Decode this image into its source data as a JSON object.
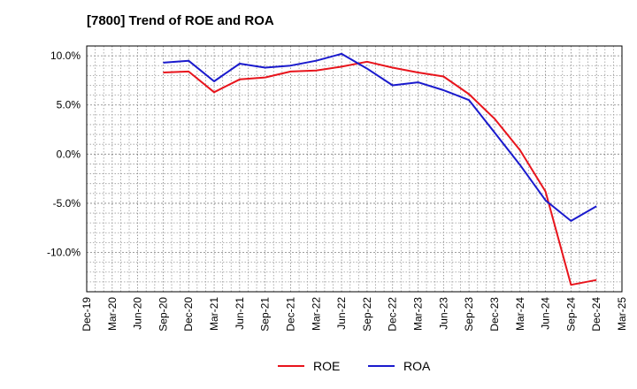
{
  "chart_data": {
    "type": "line",
    "title": "[7800]  Trend of ROE and ROA",
    "xlabel": "",
    "ylabel": "",
    "x_categories": [
      "Dec-19",
      "Mar-20",
      "Jun-20",
      "Sep-20",
      "Dec-20",
      "Mar-21",
      "Jun-21",
      "Sep-21",
      "Dec-21",
      "Mar-22",
      "Jun-22",
      "Sep-22",
      "Dec-22",
      "Mar-23",
      "Jun-23",
      "Sep-23",
      "Dec-23",
      "Mar-24",
      "Jun-24",
      "Sep-24",
      "Dec-24",
      "Mar-25"
    ],
    "y_ticks": [
      -10,
      -5,
      0,
      5,
      10
    ],
    "y_tick_labels": [
      "-10.0%",
      "-5.0%",
      "0.0%",
      "5.0%",
      "10.0%"
    ],
    "ylim": [
      -14,
      11
    ],
    "grid": true,
    "legend_position": "bottom",
    "series": [
      {
        "name": "ROE",
        "color": "#e8141c",
        "values": [
          null,
          null,
          null,
          8.3,
          8.4,
          6.3,
          7.6,
          7.8,
          8.4,
          8.5,
          8.9,
          9.4,
          8.8,
          8.3,
          7.9,
          6.1,
          3.6,
          0.4,
          -3.8,
          -13.3,
          -12.8,
          null
        ]
      },
      {
        "name": "ROA",
        "color": "#1a1acd",
        "values": [
          null,
          null,
          null,
          9.3,
          9.5,
          7.4,
          9.2,
          8.8,
          9.0,
          9.5,
          10.2,
          8.7,
          7.0,
          7.3,
          6.5,
          5.5,
          2.2,
          -1.1,
          -4.7,
          -6.8,
          -5.3,
          null
        ]
      }
    ]
  }
}
